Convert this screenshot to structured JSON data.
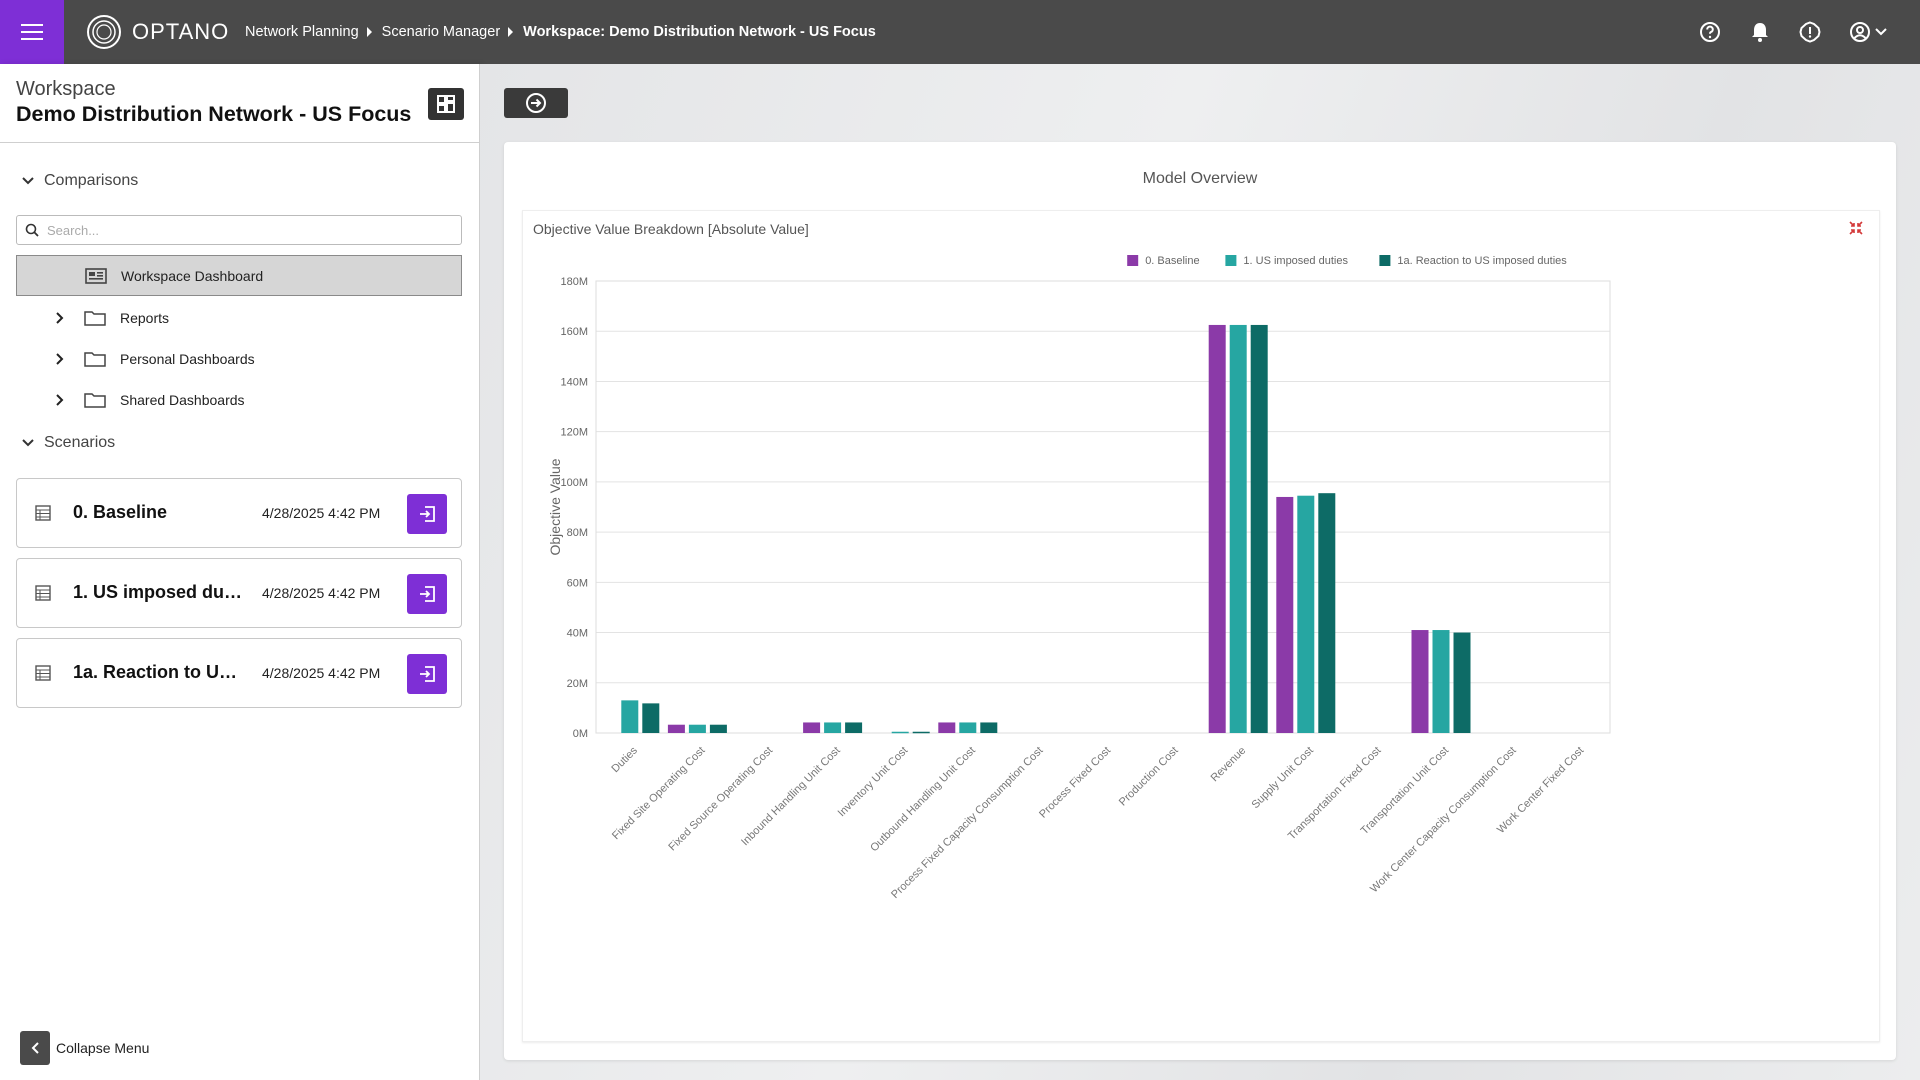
{
  "app": {
    "logo": "OPTANO"
  },
  "breadcrumbs": [
    {
      "label": "Network Planning"
    },
    {
      "label": "Scenario Manager"
    },
    {
      "label": "Workspace: Demo Distribution Network - US Focus"
    }
  ],
  "workspace": {
    "label": "Workspace",
    "name": "Demo Distribution Network - US Focus"
  },
  "sidebar": {
    "comparisons_label": "Comparisons",
    "search_placeholder": "Search...",
    "items": [
      {
        "label": "Workspace Dashboard",
        "selected": true,
        "icon": "dashboard-icon"
      },
      {
        "label": "Reports",
        "icon": "folder-icon"
      },
      {
        "label": "Personal Dashboards",
        "icon": "folder-icon"
      },
      {
        "label": "Shared Dashboards",
        "icon": "folder-icon"
      }
    ],
    "scenarios_label": "Scenarios",
    "scenarios": [
      {
        "name": "0. Baseline",
        "date": "4/28/2025 4:42 PM"
      },
      {
        "name": "1. US imposed duties",
        "date": "4/28/2025 4:42 PM"
      },
      {
        "name": "1a. Reaction to US imposed duties",
        "date": "4/28/2025 4:42 PM"
      }
    ],
    "collapse_label": "Collapse Menu"
  },
  "main": {
    "panel_title": "Model Overview"
  },
  "colors": {
    "accent": "#7e2fd6",
    "topbar": "#4a4a4a"
  },
  "chart_data": {
    "type": "bar",
    "title": "Objective Value Breakdown [Absolute Value]",
    "ylabel": "Objective Value",
    "xlabel": "",
    "ylim": [
      0,
      180000000
    ],
    "yticks": [
      "0M",
      "20M",
      "40M",
      "60M",
      "80M",
      "100M",
      "120M",
      "140M",
      "160M",
      "180M"
    ],
    "legend_position": "top-right",
    "grid": true,
    "categories": [
      "Duties",
      "Fixed Site Operating Cost",
      "Fixed Source Operating Cost",
      "Inbound Handling Unit Cost",
      "Inventory Unit Cost",
      "Outbound Handling Unit Cost",
      "Process Fixed Capacity Consumption Cost",
      "Process Fixed Cost",
      "Production Cost",
      "Revenue",
      "Supply Unit Cost",
      "Transportation Fixed Cost",
      "Transportation Unit Cost",
      "Work Center Capacity Consumption Cost",
      "Work Center Fixed Cost"
    ],
    "series": [
      {
        "name": "0. Baseline",
        "color": "#8b3aa8",
        "values": [
          0,
          3300000,
          0,
          4200000,
          0,
          4200000,
          0,
          0,
          0,
          162500000,
          94000000,
          0,
          41000000,
          0,
          0
        ]
      },
      {
        "name": "1. US imposed duties",
        "color": "#26a6a2",
        "values": [
          13000000,
          3300000,
          0,
          4200000,
          500000,
          4200000,
          0,
          0,
          0,
          162500000,
          94500000,
          0,
          41000000,
          0,
          0
        ]
      },
      {
        "name": "1a. Reaction to US imposed duties",
        "color": "#0d6b66",
        "values": [
          11800000,
          3300000,
          0,
          4200000,
          500000,
          4200000,
          0,
          0,
          0,
          162500000,
          95500000,
          0,
          40000000,
          0,
          0
        ]
      }
    ]
  }
}
